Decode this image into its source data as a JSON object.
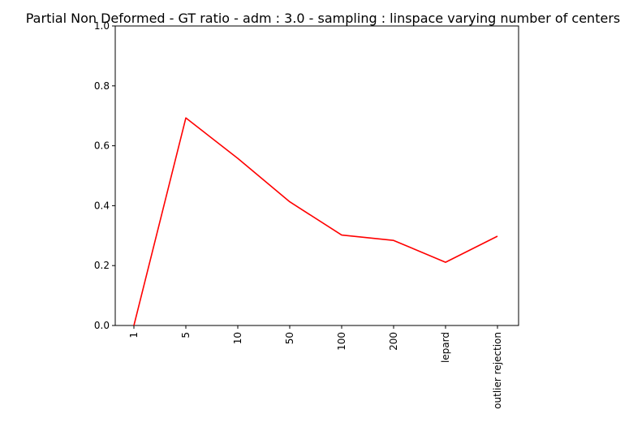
{
  "chart_data": {
    "type": "line",
    "title": "Partial Non Deformed - GT ratio - adm : 3.0 - sampling : linspace varying number of centers",
    "xlabel": "",
    "ylabel": "",
    "categories": [
      "1",
      "5",
      "10",
      "50",
      "100",
      "200",
      "lepard",
      "outlier rejection"
    ],
    "series": [
      {
        "values": [
          0.0,
          0.693,
          0.558,
          0.413,
          0.302,
          0.284,
          0.211,
          0.298
        ],
        "color": "#ff0000"
      }
    ],
    "ylim": [
      0,
      1.0
    ],
    "yticks": [
      "0.0",
      "0.2",
      "0.4",
      "0.6",
      "0.8",
      "1.0"
    ],
    "xtick_rotation": "vertical",
    "grid": false,
    "legend": "none"
  }
}
